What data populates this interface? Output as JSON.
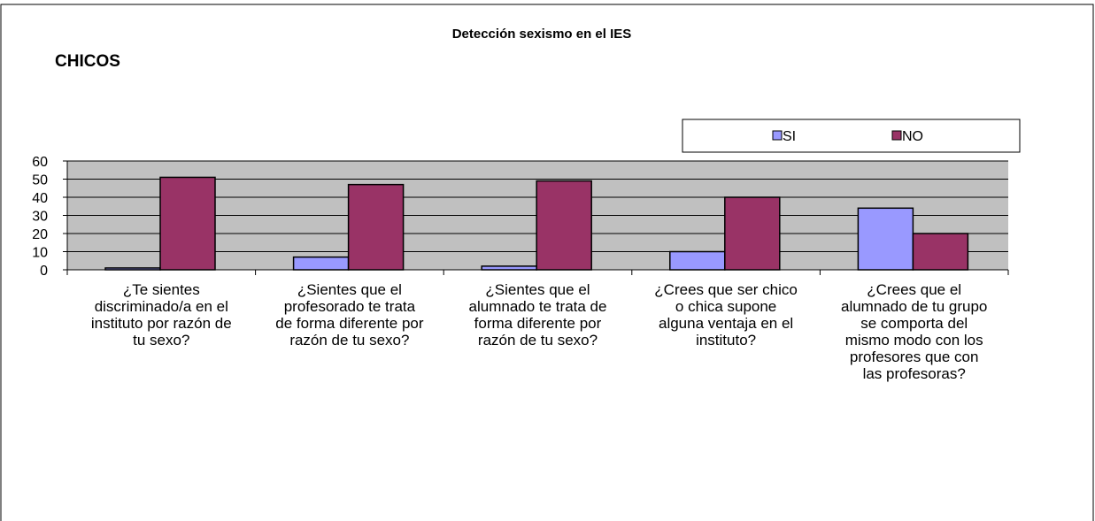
{
  "chart_data": {
    "type": "bar",
    "title": "Detección sexismo en el IES",
    "subtitle": "CHICOS",
    "categories": [
      [
        "¿Te sientes",
        "discriminado/a en el",
        "instituto por razón de",
        "tu sexo?"
      ],
      [
        "¿Sientes que el",
        "profesorado te trata",
        "de forma diferente por",
        "razón de tu sexo?"
      ],
      [
        "¿Sientes que el",
        "alumnado te trata de",
        "forma diferente por",
        "razón de tu sexo?"
      ],
      [
        "¿Crees que ser chico",
        "o chica supone",
        "alguna ventaja en el",
        "instituto?"
      ],
      [
        "¿Crees que el",
        "alumnado de tu grupo",
        "se comporta del",
        "mismo modo con los",
        "profesores que con",
        "las profesoras?"
      ]
    ],
    "series": [
      {
        "name": "SI",
        "color": "#9999ff",
        "values": [
          1,
          7,
          2,
          10,
          34
        ]
      },
      {
        "name": "NO",
        "color": "#993366",
        "values": [
          51,
          47,
          49,
          40,
          20
        ]
      }
    ],
    "ylim": [
      0,
      60
    ],
    "yticks": [
      0,
      10,
      20,
      30,
      40,
      50,
      60
    ],
    "grid": true,
    "legend": "top-right"
  }
}
